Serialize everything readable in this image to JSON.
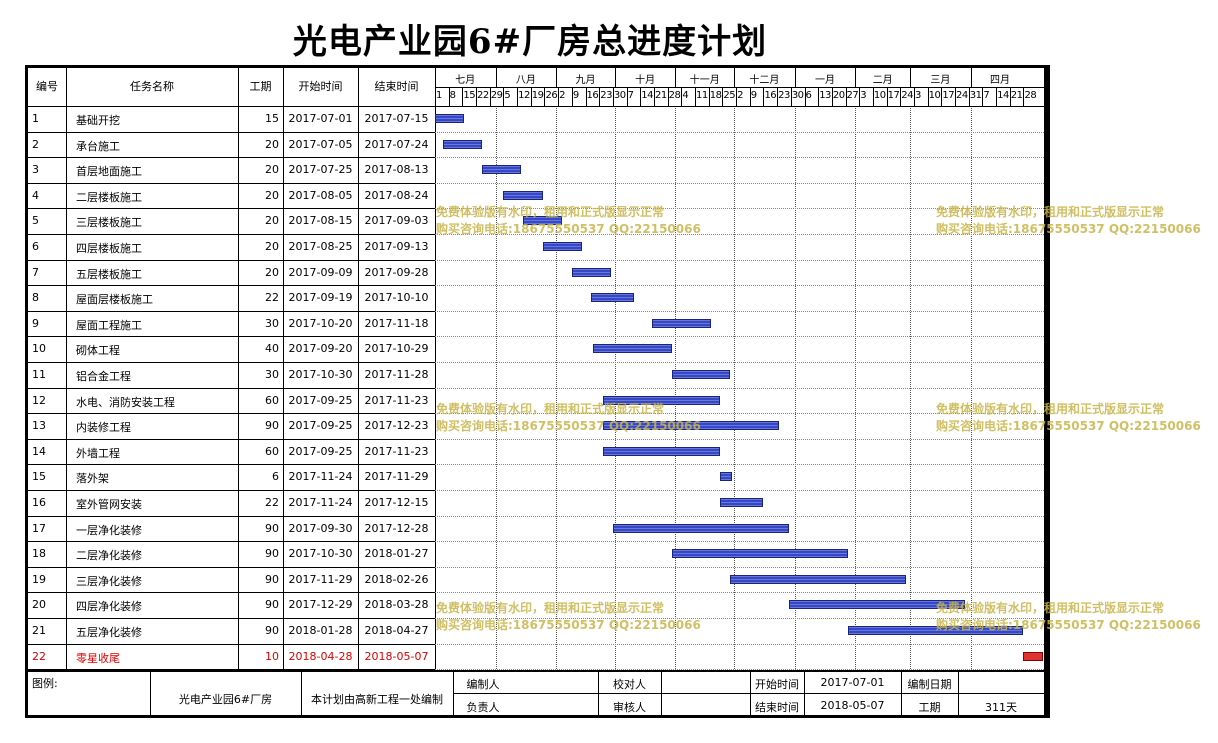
{
  "title": "光电产业园6#厂房总进度计划",
  "headers": {
    "id": "编号",
    "name": "任务名称",
    "dur": "工期",
    "start": "开始时间",
    "end": "结束时间"
  },
  "months": [
    "七月",
    "八月",
    "九月",
    "十月",
    "十一月",
    "十二月",
    "一月",
    "二月",
    "三月",
    "四月"
  ],
  "days": [
    "1",
    "8",
    "15",
    "22",
    "29",
    "5",
    "12",
    "19",
    "26",
    "2",
    "9",
    "16",
    "23",
    "30",
    "7",
    "14",
    "21",
    "28",
    "4",
    "11",
    "18",
    "25",
    "2",
    "9",
    "16",
    "23",
    "30",
    "6",
    "13",
    "20",
    "27",
    "3",
    "10",
    "17",
    "24",
    "3",
    "10",
    "17",
    "24",
    "31",
    "7",
    "14",
    "21",
    "28"
  ],
  "tasks": [
    {
      "id": "1",
      "name": "基础开挖",
      "dur": "15",
      "start": "2017-07-01",
      "end": "2017-07-15"
    },
    {
      "id": "2",
      "name": "承台施工",
      "dur": "20",
      "start": "2017-07-05",
      "end": "2017-07-24"
    },
    {
      "id": "3",
      "name": "首层地面施工",
      "dur": "20",
      "start": "2017-07-25",
      "end": "2017-08-13"
    },
    {
      "id": "4",
      "name": "二层楼板施工",
      "dur": "20",
      "start": "2017-08-05",
      "end": "2017-08-24"
    },
    {
      "id": "5",
      "name": "三层楼板施工",
      "dur": "20",
      "start": "2017-08-15",
      "end": "2017-09-03"
    },
    {
      "id": "6",
      "name": "四层楼板施工",
      "dur": "20",
      "start": "2017-08-25",
      "end": "2017-09-13"
    },
    {
      "id": "7",
      "name": "五层楼板施工",
      "dur": "20",
      "start": "2017-09-09",
      "end": "2017-09-28"
    },
    {
      "id": "8",
      "name": "屋面层楼板施工",
      "dur": "22",
      "start": "2017-09-19",
      "end": "2017-10-10"
    },
    {
      "id": "9",
      "name": "屋面工程施工",
      "dur": "30",
      "start": "2017-10-20",
      "end": "2017-11-18"
    },
    {
      "id": "10",
      "name": "砌体工程",
      "dur": "40",
      "start": "2017-09-20",
      "end": "2017-10-29"
    },
    {
      "id": "11",
      "name": "铝合金工程",
      "dur": "30",
      "start": "2017-10-30",
      "end": "2017-11-28"
    },
    {
      "id": "12",
      "name": "水电、消防安装工程",
      "dur": "60",
      "start": "2017-09-25",
      "end": "2017-11-23"
    },
    {
      "id": "13",
      "name": "内装修工程",
      "dur": "90",
      "start": "2017-09-25",
      "end": "2017-12-23"
    },
    {
      "id": "14",
      "name": "外墙工程",
      "dur": "60",
      "start": "2017-09-25",
      "end": "2017-11-23"
    },
    {
      "id": "15",
      "name": "落外架",
      "dur": "6",
      "start": "2017-11-24",
      "end": "2017-11-29"
    },
    {
      "id": "16",
      "name": "室外管网安装",
      "dur": "22",
      "start": "2017-11-24",
      "end": "2017-12-15"
    },
    {
      "id": "17",
      "name": "一层净化装修",
      "dur": "90",
      "start": "2017-09-30",
      "end": "2017-12-28"
    },
    {
      "id": "18",
      "name": "二层净化装修",
      "dur": "90",
      "start": "2017-10-30",
      "end": "2018-01-27"
    },
    {
      "id": "19",
      "name": "三层净化装修",
      "dur": "90",
      "start": "2017-11-29",
      "end": "2018-02-26"
    },
    {
      "id": "20",
      "name": "四层净化装修",
      "dur": "90",
      "start": "2017-12-29",
      "end": "2018-03-28"
    },
    {
      "id": "21",
      "name": "五层净化装修",
      "dur": "90",
      "start": "2018-01-28",
      "end": "2018-04-27"
    },
    {
      "id": "22",
      "name": "零星收尾",
      "dur": "10",
      "start": "2018-04-28",
      "end": "2018-05-07",
      "highlight": true
    }
  ],
  "watermark": {
    "line1": "免费体验版有水印，租用和正式版显示正常",
    "line2": "购买咨询电话:18675550537 QQ:22150066"
  },
  "footer": {
    "legend": "图例:",
    "project": "光电产业园6#厂房",
    "note": "本计划由高新工程一处编制",
    "editor": "编制人",
    "checker": "校对人",
    "start_label": "开始时间",
    "start_value": "2017-07-01",
    "date_label": "编制日期",
    "owner": "负责人",
    "reviewer": "审核人",
    "end_label": "结束时间",
    "end_value": "2018-05-07",
    "dur_label": "工期",
    "dur_value": "311天"
  },
  "colors": {
    "bar": "#3548c8",
    "highlight_bar": "#d33333",
    "highlight_text": "#e00000",
    "watermark": "#c8b44a"
  }
}
